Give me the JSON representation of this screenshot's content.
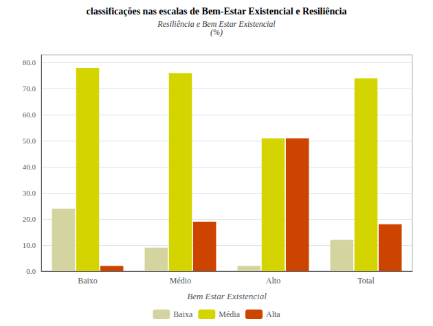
{
  "chart_data": {
    "type": "bar",
    "title": "classificações nas escalas de Bem-Estar Existencial e Resiliência",
    "subtitle": "Resiliência e Bem Estar Existencial\n(%)",
    "xlabel": "Bem Estar Existencial",
    "categories": [
      "Baixo",
      "Médio",
      "Alto",
      "Total"
    ],
    "series": [
      {
        "name": "Baixa",
        "color": "#d4d4a0",
        "values": [
          24.0,
          9.0,
          2.0,
          12.0
        ]
      },
      {
        "name": "Média",
        "color": "#d4d400",
        "values": [
          78.0,
          76.0,
          51.0,
          74.0
        ]
      },
      {
        "name": "Alta",
        "color": "#cc4400",
        "values": [
          2.0,
          19.0,
          51.0,
          18.0
        ]
      }
    ],
    "ylim": [
      0,
      83
    ],
    "yticks": [
      {
        "value": 0,
        "label": "0.0"
      },
      {
        "value": 10,
        "label": "10.0"
      },
      {
        "value": 20,
        "label": "20.0"
      },
      {
        "value": 30,
        "label": "30.0"
      },
      {
        "value": 40,
        "label": "40.0"
      },
      {
        "value": 50,
        "label": "50.0"
      },
      {
        "value": 60,
        "label": "60.0"
      },
      {
        "value": 70,
        "label": "70.0"
      },
      {
        "value": 80,
        "label": "80.0"
      }
    ],
    "grid": true,
    "legend": "bottom"
  }
}
